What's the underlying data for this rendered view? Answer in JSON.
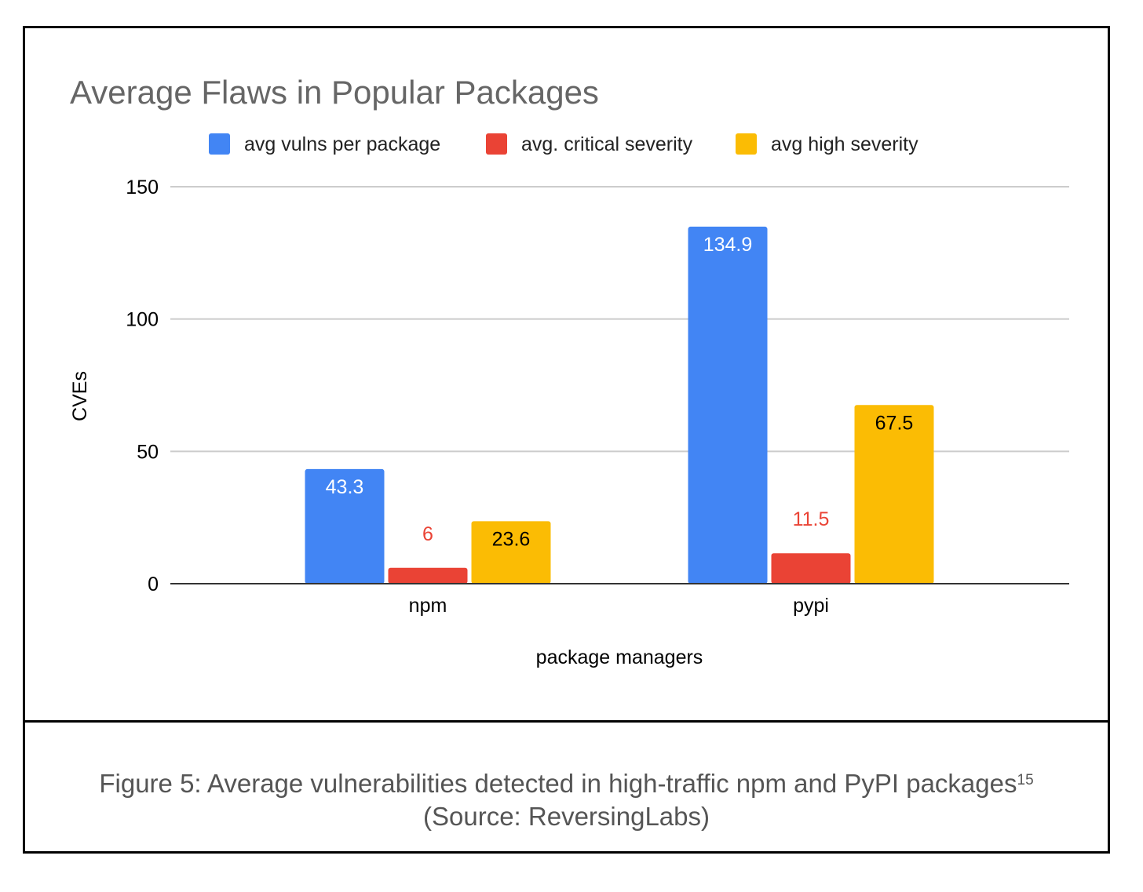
{
  "chart_data": {
    "type": "bar",
    "title": "Average Flaws in Popular Packages",
    "xlabel": "package managers",
    "ylabel": "CVEs",
    "categories": [
      "npm",
      "pypi"
    ],
    "series": [
      {
        "name": "avg vulns per package",
        "color": "#4285f4",
        "label_color": "#ffffff",
        "values": [
          43.3,
          134.9
        ],
        "labels": [
          "43.3",
          "134.9"
        ]
      },
      {
        "name": "avg. critical severity",
        "color": "#ea4335",
        "label_color": "#ffffff",
        "values": [
          6,
          11.5
        ],
        "labels": [
          "6",
          "11.5"
        ]
      },
      {
        "name": "avg high severity",
        "color": "#fbbc04",
        "label_color": "#000000",
        "values": [
          23.6,
          67.5
        ],
        "labels": [
          "23.6",
          "67.5"
        ]
      }
    ],
    "ylim": [
      0,
      150
    ],
    "yticks": [
      0,
      50,
      100,
      150
    ],
    "ytick_labels": [
      "0",
      "50",
      "100",
      "150"
    ],
    "grid": true,
    "legend_position": "top"
  },
  "caption": {
    "line1": "Figure 5: Average vulnerabilities detected in high-traffic npm and PyPI packages",
    "footnote": "15",
    "line2": "(Source: ReversingLabs)"
  }
}
